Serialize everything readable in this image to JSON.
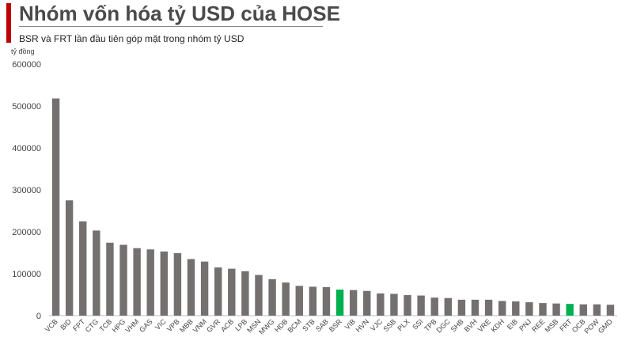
{
  "header": {
    "title": "Nhóm vốn hóa tỷ USD của HOSE",
    "subtitle": "BSR và FRT lần đầu tiên góp mặt trong nhóm tỷ USD"
  },
  "colors": {
    "accent": "#c00000",
    "bar_default": "#747070",
    "bar_highlight": "#00b050"
  },
  "chart_data": {
    "type": "bar",
    "title": "Nhóm vốn hóa tỷ USD của HOSE",
    "subtitle": "BSR và FRT lần đầu tiên góp mặt trong nhóm tỷ USD",
    "ylabel": "tỷ đồng",
    "xlabel": "",
    "ylim": [
      0,
      600000
    ],
    "yticks": [
      0,
      100000,
      200000,
      300000,
      400000,
      500000,
      600000
    ],
    "grid": false,
    "categories": [
      "VCB",
      "BID",
      "FPT",
      "CTG",
      "TCB",
      "HPG",
      "VHM",
      "GAS",
      "VIC",
      "VPB",
      "MBB",
      "VNM",
      "GVR",
      "ACB",
      "LPB",
      "MSN",
      "MWG",
      "HDB",
      "BCM",
      "STB",
      "SAB",
      "BSR",
      "VIB",
      "HVN",
      "VJC",
      "SSB",
      "PLX",
      "SSI",
      "TPB",
      "DGC",
      "SHB",
      "BVH",
      "VRE",
      "KDH",
      "EIB",
      "PNJ",
      "REE",
      "MSB",
      "FRT",
      "OCB",
      "POW",
      "GMD"
    ],
    "values": [
      518000,
      275000,
      225000,
      203000,
      174000,
      169000,
      161000,
      158000,
      153000,
      149000,
      135000,
      129000,
      115000,
      112000,
      106000,
      97000,
      87000,
      79000,
      71000,
      69000,
      68000,
      62000,
      61000,
      59000,
      53000,
      52000,
      49000,
      48000,
      43000,
      42000,
      38000,
      38000,
      38000,
      35000,
      34000,
      32000,
      30000,
      29000,
      28000,
      27000,
      27000,
      26000
    ],
    "highlighted": [
      "BSR",
      "FRT"
    ]
  }
}
